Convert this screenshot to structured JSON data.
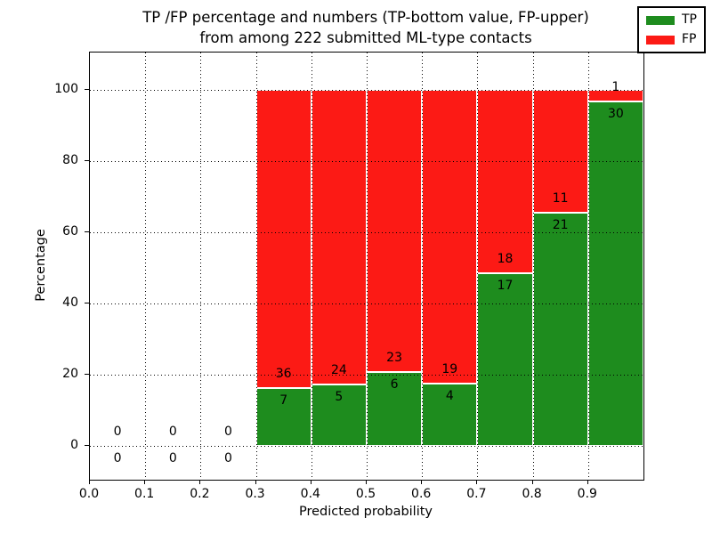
{
  "figure": {
    "title_line1": "TP /FP percentage and numbers (TP-bottom value, FP-upper)",
    "title_line2": "from among 222 submitted ML-type contacts"
  },
  "chart_data": {
    "type": "bar",
    "stacked": true,
    "normalized_to_percent": true,
    "title": "TP /FP percentage and numbers (TP-bottom value, FP-upper) from among 222 submitted ML-type contacts",
    "xlabel": "Predicted probability",
    "ylabel": "Percentage",
    "xlim": [
      0.0,
      1.0
    ],
    "ylim": [
      -9.5,
      110.5
    ],
    "xtick_labels": [
      "0.0",
      "0.1",
      "0.2",
      "0.3",
      "0.4",
      "0.5",
      "0.6",
      "0.7",
      "0.8",
      "0.9"
    ],
    "ytick_labels": [
      "0",
      "20",
      "40",
      "60",
      "80",
      "100"
    ],
    "ytick_values": [
      0,
      20,
      40,
      60,
      80,
      100
    ],
    "grid": {
      "style": "dotted",
      "color": "#000000",
      "above_bars": true
    },
    "total_submitted": 222,
    "colors": {
      "tp": "#1e8c1e",
      "fp": "#fc1a15",
      "bar_edge": "#ffffff"
    },
    "legend": {
      "position": "upper-right",
      "entries": [
        {
          "label": "TP",
          "color": "#1e8c1e"
        },
        {
          "label": "FP",
          "color": "#fc1a15"
        }
      ]
    },
    "bins": [
      {
        "x0": 0.0,
        "x1": 0.1,
        "tp": 0,
        "fp": 0
      },
      {
        "x0": 0.1,
        "x1": 0.2,
        "tp": 0,
        "fp": 0
      },
      {
        "x0": 0.2,
        "x1": 0.3,
        "tp": 0,
        "fp": 0
      },
      {
        "x0": 0.3,
        "x1": 0.4,
        "tp": 7,
        "fp": 36
      },
      {
        "x0": 0.4,
        "x1": 0.5,
        "tp": 5,
        "fp": 24
      },
      {
        "x0": 0.5,
        "x1": 0.6,
        "tp": 6,
        "fp": 23
      },
      {
        "x0": 0.6,
        "x1": 0.7,
        "tp": 4,
        "fp": 19
      },
      {
        "x0": 0.7,
        "x1": 0.8,
        "tp": 17,
        "fp": 18
      },
      {
        "x0": 0.8,
        "x1": 0.9,
        "tp": 21,
        "fp": 11
      },
      {
        "x0": 0.9,
        "x1": 1.0,
        "tp": 30,
        "fp": 1,
        "fp_label_hidden_by_legend": true
      }
    ]
  }
}
